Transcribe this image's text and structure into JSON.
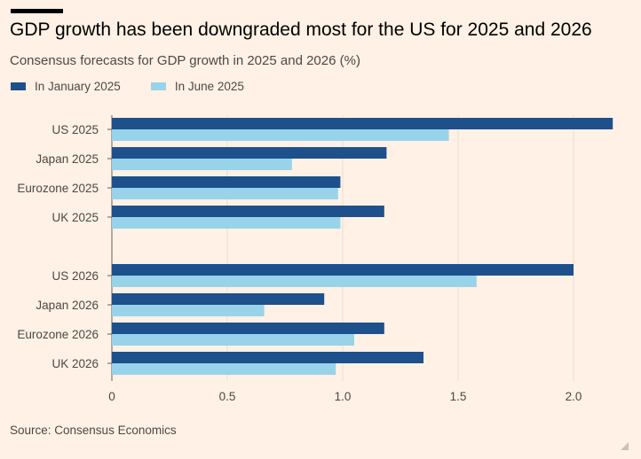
{
  "header": {
    "title": "GDP growth has been downgraded most for the US for 2025 and 2026",
    "subtitle": "Consensus forecasts for GDP growth in 2025 and 2026 (%)"
  },
  "legend": [
    {
      "label": "In January 2025",
      "color": "#1e508c"
    },
    {
      "label": "In June 2025",
      "color": "#98d3ea"
    }
  ],
  "footer": {
    "source": "Source: Consensus Economics"
  },
  "chart_data": {
    "type": "bar",
    "orientation": "horizontal",
    "categories": [
      "US 2025",
      "Japan 2025",
      "Eurozone 2025",
      "UK 2025",
      "US 2026",
      "Japan 2026",
      "Eurozone 2026",
      "UK 2026"
    ],
    "groups": [
      [
        "US 2025",
        "Japan 2025",
        "Eurozone 2025",
        "UK 2025"
      ],
      [
        "US 2026",
        "Japan 2026",
        "Eurozone 2026",
        "UK 2026"
      ]
    ],
    "series": [
      {
        "name": "In January 2025",
        "color": "#1e508c",
        "values": [
          2.17,
          1.19,
          0.99,
          1.18,
          2.0,
          0.92,
          1.18,
          1.35
        ]
      },
      {
        "name": "In June 2025",
        "color": "#98d3ea",
        "values": [
          1.46,
          0.78,
          0.98,
          0.99,
          1.58,
          0.66,
          1.05,
          0.97
        ]
      }
    ],
    "xticks": [
      0,
      0.5,
      1.0,
      1.5,
      2.0
    ],
    "xtick_labels": [
      "0",
      "0.5",
      "1.0",
      "1.5",
      "2.0"
    ],
    "xlim": [
      0,
      2.2
    ],
    "grid": true,
    "legend_position": "top-left"
  }
}
